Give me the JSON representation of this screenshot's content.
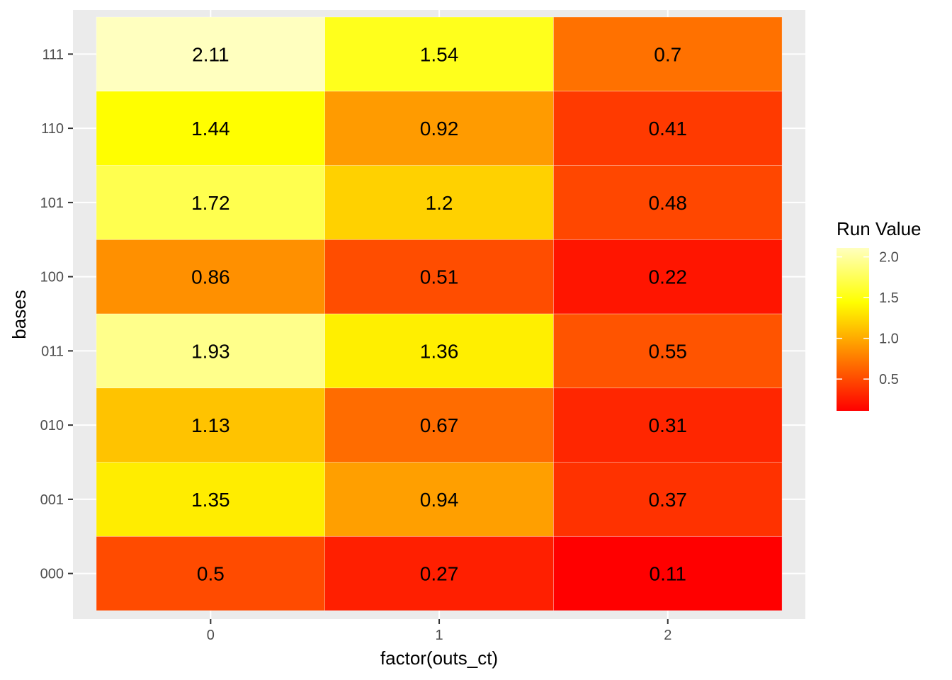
{
  "chart_data": {
    "type": "heatmap",
    "xlabel": "factor(outs_ct)",
    "ylabel": "bases",
    "x_categories": [
      "0",
      "1",
      "2"
    ],
    "y_categories": [
      "000",
      "001",
      "010",
      "011",
      "100",
      "101",
      "110",
      "111"
    ],
    "values": [
      [
        0.5,
        0.27,
        0.11
      ],
      [
        1.35,
        0.94,
        0.37
      ],
      [
        1.13,
        0.67,
        0.31
      ],
      [
        1.93,
        1.36,
        0.55
      ],
      [
        0.86,
        0.51,
        0.22
      ],
      [
        1.72,
        1.2,
        0.48
      ],
      [
        1.44,
        0.92,
        0.41
      ],
      [
        2.11,
        1.54,
        0.7
      ]
    ],
    "value_labels": [
      [
        "0.5",
        "0.27",
        "0.11"
      ],
      [
        "1.35",
        "0.94",
        "0.37"
      ],
      [
        "1.13",
        "0.67",
        "0.31"
      ],
      [
        "1.93",
        "1.36",
        "0.55"
      ],
      [
        "0.86",
        "0.51",
        "0.22"
      ],
      [
        "1.72",
        "1.2",
        "0.48"
      ],
      [
        "1.44",
        "0.92",
        "0.41"
      ],
      [
        "2.11",
        "1.54",
        "0.7"
      ]
    ],
    "legend": {
      "title": "Run Value",
      "ticks": [
        "0.5",
        "1.0",
        "1.5",
        "2.0"
      ],
      "tick_values": [
        0.5,
        1.0,
        1.5,
        2.0
      ],
      "range": [
        0.11,
        2.11
      ],
      "placement": "right"
    },
    "colors": {
      "panel_background": "#EBEBEB",
      "grid": "#FFFFFF",
      "palette_stops": [
        "#FF0000",
        "#FF8000",
        "#FFFF00",
        "#FFFFBF"
      ]
    },
    "grid": true
  }
}
